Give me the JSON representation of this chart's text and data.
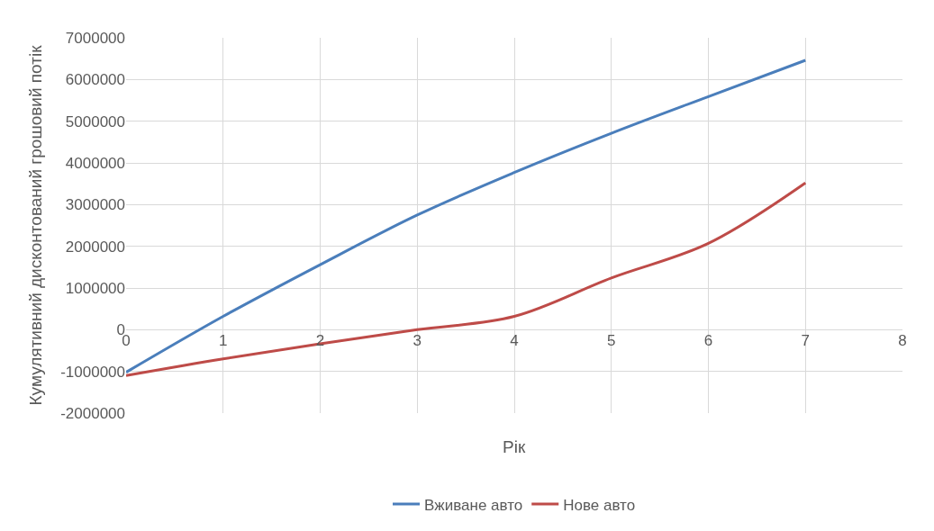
{
  "chart_data": {
    "type": "line",
    "xlabel": "Рік",
    "ylabel": "Кумулятивний дисконтований грошовий потік",
    "x": [
      0,
      1,
      2,
      3,
      4,
      5,
      6,
      7
    ],
    "series": [
      {
        "name": "Вживане авто",
        "color": "#4a7ebb",
        "values": [
          -1020000,
          320000,
          1560000,
          2750000,
          3770000,
          4710000,
          5590000,
          6460000
        ]
      },
      {
        "name": "Нове авто",
        "color": "#be4b48",
        "values": [
          -1100000,
          -700000,
          -340000,
          0,
          320000,
          1240000,
          2070000,
          3520000
        ]
      }
    ],
    "xlim": [
      0,
      8
    ],
    "xticks": [
      0,
      1,
      2,
      3,
      4,
      5,
      6,
      7,
      8
    ],
    "ylim": [
      -2000000,
      7000000
    ],
    "yticks": [
      -2000000,
      -1000000,
      0,
      1000000,
      2000000,
      3000000,
      4000000,
      5000000,
      6000000,
      7000000
    ],
    "grid": true,
    "legend": "bottom",
    "marker": "none",
    "line_style": "solid"
  }
}
